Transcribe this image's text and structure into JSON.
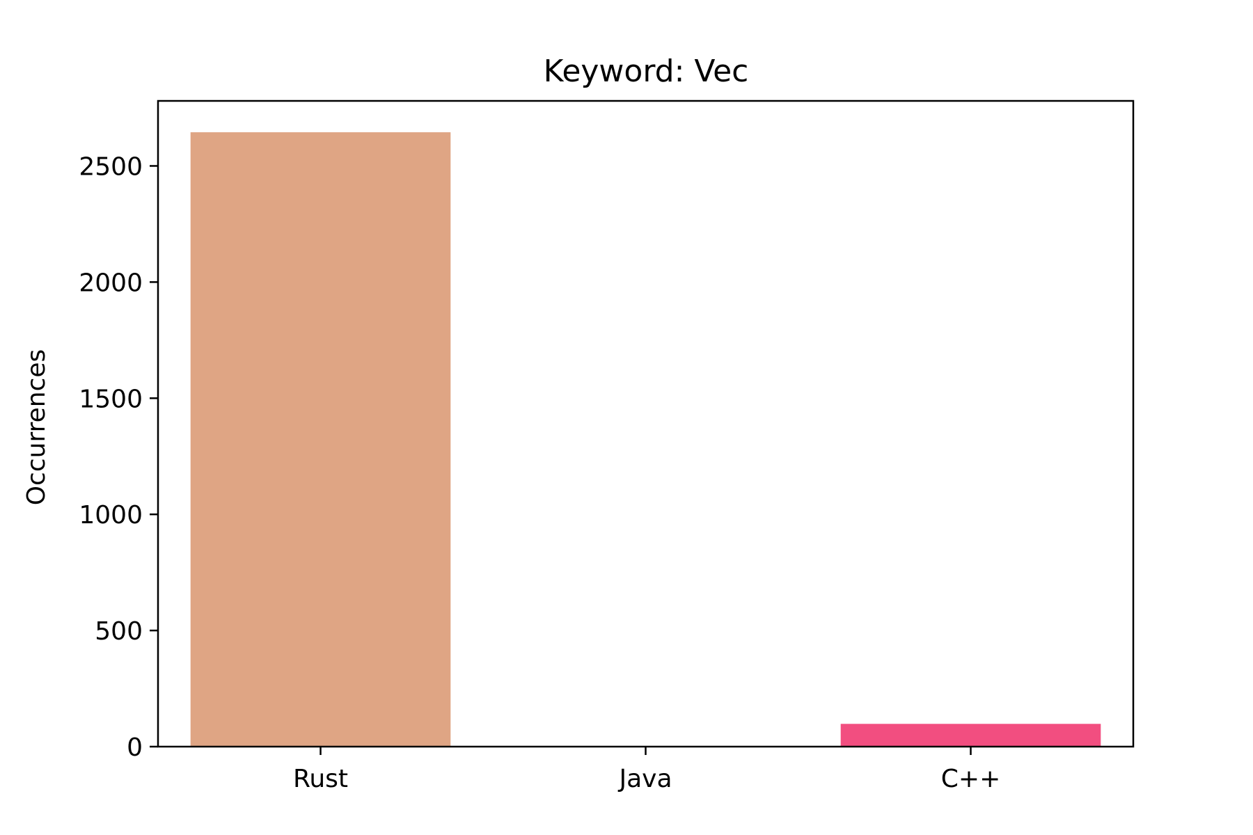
{
  "chart_data": {
    "type": "bar",
    "title": "Keyword: Vec",
    "xlabel": "",
    "ylabel": "Occurrences",
    "categories": [
      "Rust",
      "Java",
      "C++"
    ],
    "values": [
      2645,
      0,
      98
    ],
    "colors": [
      "#dfa584",
      "#1f77b4",
      "#f24e80"
    ],
    "ylim": [
      0,
      2780
    ],
    "yticks": [
      0,
      500,
      1000,
      1500,
      2000,
      2500
    ],
    "grid": false,
    "legend": "none"
  }
}
